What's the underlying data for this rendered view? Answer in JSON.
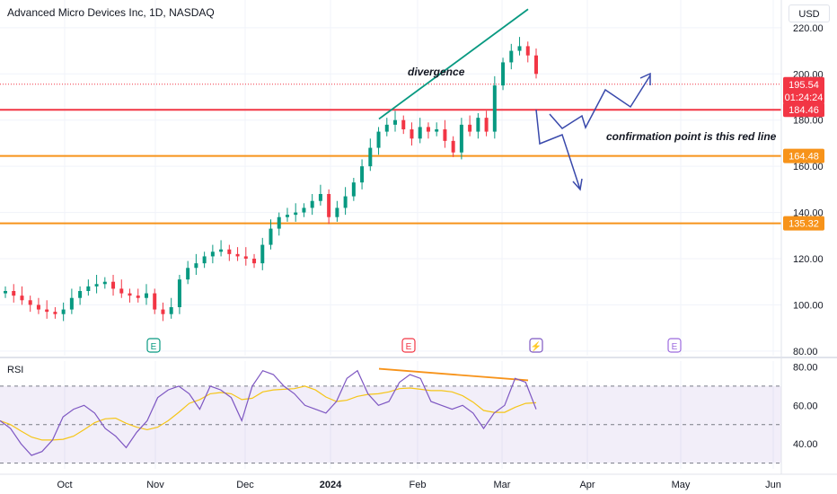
{
  "header": {
    "title": "Advanced Micro Devices Inc, 1D, NASDAQ",
    "currency": "USD"
  },
  "rsi_panel": {
    "label": "RSI"
  },
  "colors": {
    "up": "#089981",
    "down": "#f23645",
    "support_line": "#f7931a",
    "confirmation_line": "#f23645",
    "divergence_price": "#089981",
    "divergence_rsi": "#f7931a",
    "projection": "#3949ab",
    "rsi_line": "#7e57c2",
    "rsi_ma": "#f5c518"
  },
  "chart_data": [
    {
      "type": "candlestick",
      "title": "Advanced Micro Devices Inc, 1D, NASDAQ",
      "x_tick_labels": [
        "Oct",
        "Nov",
        "Dec",
        "2024",
        "Feb",
        "Mar",
        "Apr",
        "May",
        "Jun"
      ],
      "y_tick_labels": [
        "80.00",
        "100.00",
        "120.00",
        "140.00",
        "160.00",
        "180.00",
        "200.00",
        "220.00"
      ],
      "ylim": [
        78,
        232
      ],
      "close_series_approx": [
        106,
        104,
        102,
        100,
        98,
        97,
        96,
        98,
        103,
        106,
        108,
        109,
        110,
        107,
        105,
        104,
        103,
        105,
        98,
        96,
        99,
        111,
        116,
        118,
        121,
        123,
        124,
        122,
        121,
        120,
        118,
        126,
        133,
        138,
        139,
        140,
        142,
        145,
        148,
        138,
        142,
        147,
        153,
        160,
        168,
        175,
        178,
        180,
        176,
        172,
        177,
        175,
        176,
        171,
        166,
        178,
        175,
        181,
        175,
        195,
        205,
        210,
        212,
        208,
        200
      ],
      "horizontal_levels": [
        {
          "value": 184.46,
          "label": "184.46",
          "color": "#f23645"
        },
        {
          "value": 164.48,
          "label": "164.48",
          "color": "#f7931a"
        },
        {
          "value": 135.32,
          "label": "135.32",
          "color": "#f7931a"
        }
      ],
      "last_price": {
        "value": 195.54,
        "label": "195.54",
        "countdown": "01:24:24"
      },
      "annotations": [
        {
          "text": "divergence"
        },
        {
          "text": "confirmation point is this red line"
        }
      ],
      "event_markers": [
        "E",
        "E",
        "⚡",
        "E"
      ]
    },
    {
      "type": "line",
      "title": "RSI",
      "y_tick_labels": [
        "40.00",
        "60.00",
        "80.00"
      ],
      "ylim": [
        27,
        83
      ],
      "band": [
        30,
        70
      ],
      "mid_line": 50,
      "rsi_values_approx": [
        52,
        48,
        40,
        34,
        36,
        42,
        54,
        58,
        60,
        56,
        48,
        44,
        38,
        46,
        52,
        64,
        68,
        70,
        66,
        58,
        70,
        68,
        64,
        52,
        70,
        78,
        76,
        70,
        66,
        60,
        58,
        56,
        62,
        74,
        78,
        66,
        60,
        62,
        72,
        76,
        74,
        62,
        60,
        58,
        60,
        56,
        48,
        56,
        60,
        74,
        72,
        58
      ]
    }
  ]
}
